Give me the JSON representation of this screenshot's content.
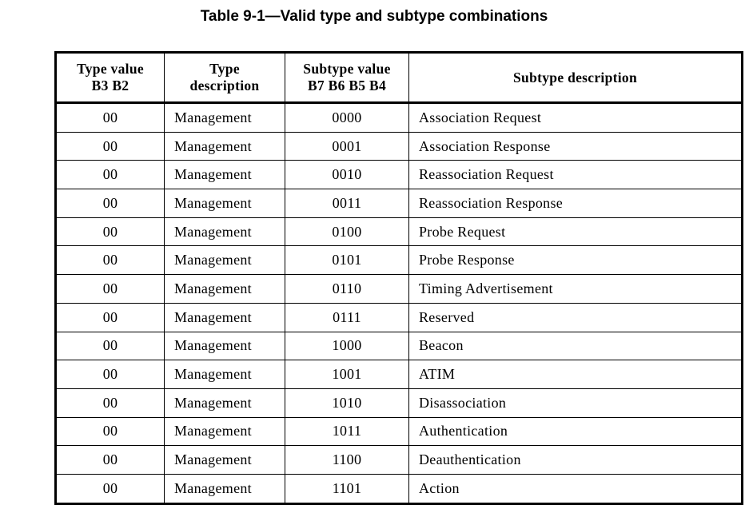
{
  "title": "Table 9-1—Valid type and subtype combinations",
  "table": {
    "columns": [
      "Type value\nB3 B2",
      "Type\ndescription",
      "Subtype value\nB7 B6 B5 B4",
      "Subtype description"
    ],
    "rows": [
      [
        "00",
        "Management",
        "0000",
        "Association Request"
      ],
      [
        "00",
        "Management",
        "0001",
        "Association Response"
      ],
      [
        "00",
        "Management",
        "0010",
        "Reassociation Request"
      ],
      [
        "00",
        "Management",
        "0011",
        "Reassociation Response"
      ],
      [
        "00",
        "Management",
        "0100",
        "Probe Request"
      ],
      [
        "00",
        "Management",
        "0101",
        "Probe Response"
      ],
      [
        "00",
        "Management",
        "0110",
        "Timing Advertisement"
      ],
      [
        "00",
        "Management",
        "0111",
        "Reserved"
      ],
      [
        "00",
        "Management",
        "1000",
        "Beacon"
      ],
      [
        "00",
        "Management",
        "1001",
        "ATIM"
      ],
      [
        "00",
        "Management",
        "1010",
        "Disassociation"
      ],
      [
        "00",
        "Management",
        "1011",
        "Authentication"
      ],
      [
        "00",
        "Management",
        "1100",
        "Deauthentication"
      ],
      [
        "00",
        "Management",
        "1101",
        "Action"
      ]
    ]
  },
  "colors": {
    "text": "#000000",
    "border": "#000000",
    "background": "#ffffff"
  }
}
